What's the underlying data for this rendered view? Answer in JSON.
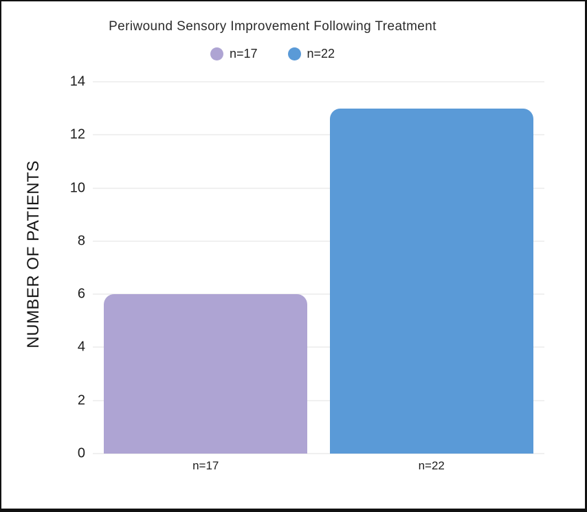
{
  "chart_data": {
    "type": "bar",
    "title": "Periwound Sensory Improvement Following Treatment",
    "categories": [
      "n=17",
      "n=22"
    ],
    "values": [
      6,
      13
    ],
    "bar_colors": [
      "#aea4d3",
      "#5a9ad7"
    ],
    "legend": [
      {
        "label": "n=17",
        "color": "#aea4d3"
      },
      {
        "label": "n=22",
        "color": "#5a9ad7"
      }
    ],
    "legend_position": "top",
    "xlabel": "",
    "ylabel": "NUMBER OF PATIENTS",
    "ylim": [
      0,
      14
    ],
    "yticks": [
      0,
      2,
      4,
      6,
      8,
      10,
      12,
      14
    ],
    "grid": true,
    "gridline_color": "#f0f0f0",
    "background": "#ffffff",
    "frame_border_color": "#111111"
  }
}
